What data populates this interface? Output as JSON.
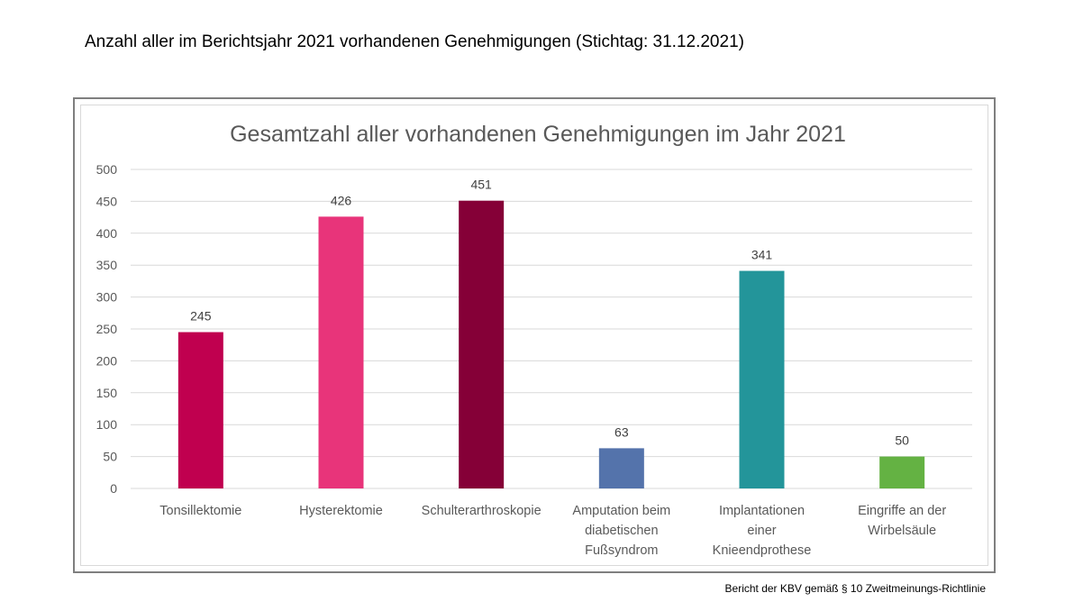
{
  "page": {
    "heading": "Anzahl aller im Berichtsjahr 2021 vorhandenen Genehmigungen (Stichtag: 31.12.2021)",
    "footer": "Bericht der KBV gemäß § 10 Zweitmeinungs-Richtlinie"
  },
  "chart_data": {
    "type": "bar",
    "title": "Gesamtzahl aller vorhandenen Genehmigungen im Jahr 2021",
    "xlabel": "",
    "ylabel": "",
    "ylim": [
      0,
      500
    ],
    "yticks": [
      0,
      50,
      100,
      150,
      200,
      250,
      300,
      350,
      400,
      450,
      500
    ],
    "grid": true,
    "categories": [
      [
        "Tonsillektomie"
      ],
      [
        "Hysterektomie"
      ],
      [
        "Schulterarthroskopie"
      ],
      [
        "Amputation beim",
        "diabetischen",
        "Fußsyndrom"
      ],
      [
        "Implantationen",
        "einer",
        "Knieendprothese"
      ],
      [
        "Eingriffe an der",
        "Wirbelsäule"
      ]
    ],
    "values": [
      245,
      426,
      451,
      63,
      341,
      50
    ],
    "colors": [
      "#c0004f",
      "#e8347a",
      "#850037",
      "#5473ab",
      "#23959a",
      "#64b243"
    ]
  }
}
